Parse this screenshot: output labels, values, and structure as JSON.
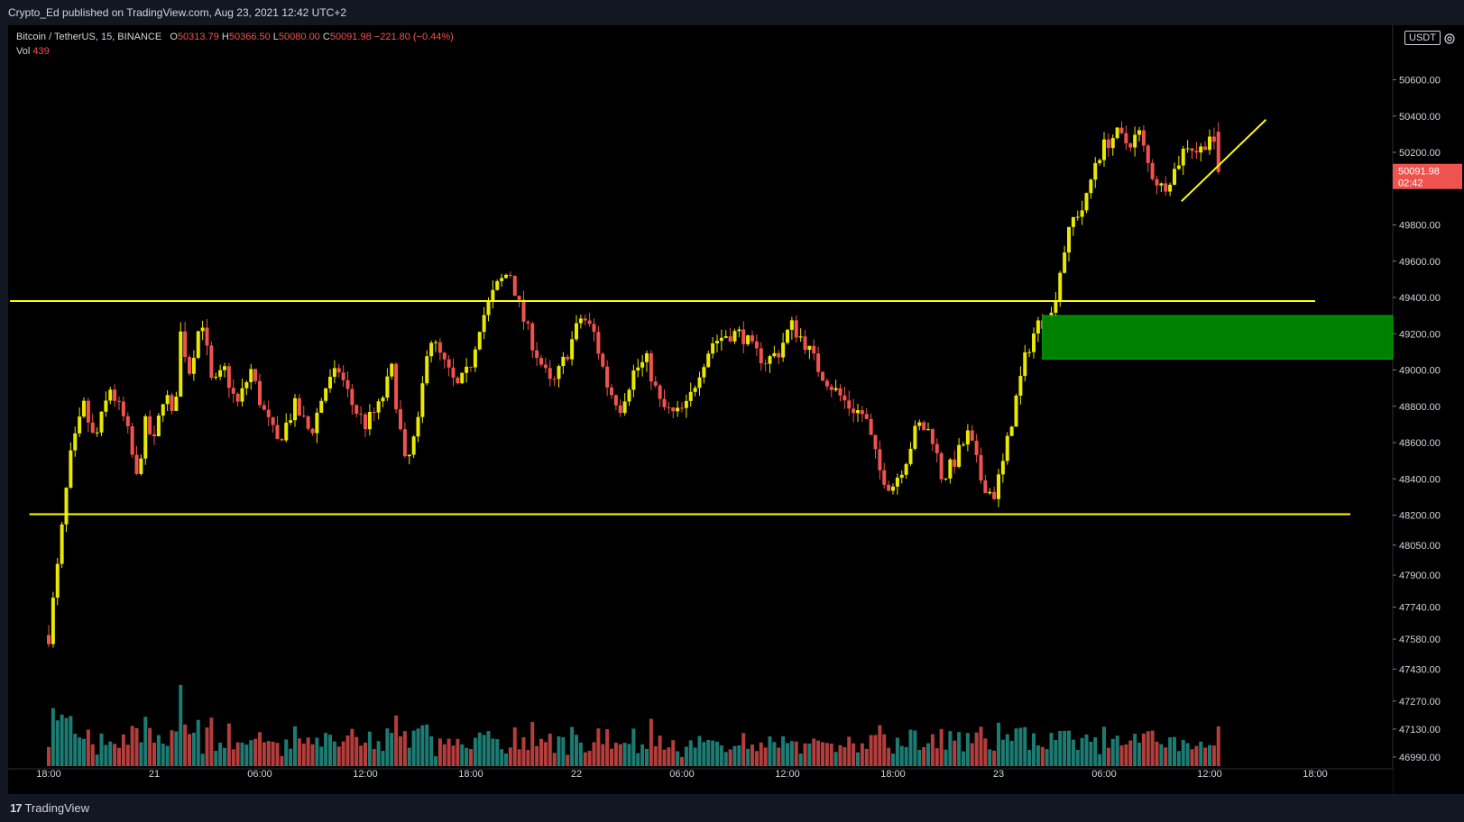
{
  "header": {
    "published": "Crypto_Ed published on TradingView.com, Aug 23, 2021 12:42 UTC+2"
  },
  "legend": {
    "symbol": "Bitcoin / TetherUS, 15, BINANCE",
    "open_label": "O",
    "open": "50313.79",
    "high_label": "H",
    "high": "50366.50",
    "low_label": "L",
    "low": "50080.00",
    "close_label": "C",
    "close": "50091.98",
    "change": "−221.80 (−0.44%)",
    "vol_label": "Vol",
    "vol": "439"
  },
  "price_axis": {
    "currency": "USDT",
    "last_price": "50091.98",
    "countdown": "02:42"
  },
  "footer": {
    "brand": "TradingView"
  },
  "colors": {
    "up": "#e8e800",
    "down": "#ef5350",
    "vol_up": "#26a69a",
    "vol_down": "#ef5350",
    "level_line": "#ffff00",
    "zone": "#008000"
  },
  "chart_data": {
    "type": "candlestick",
    "symbol": "Bitcoin / TetherUS",
    "interval": "15",
    "exchange": "BINANCE",
    "price_ticks": [
      {
        "label": "50600.00",
        "value": 50600
      },
      {
        "label": "50400.00",
        "value": 50400
      },
      {
        "label": "50200.00",
        "value": 50200
      },
      {
        "label": "49800.00",
        "value": 49800
      },
      {
        "label": "49600.00",
        "value": 49600
      },
      {
        "label": "49400.00",
        "value": 49400
      },
      {
        "label": "49200.00",
        "value": 49200
      },
      {
        "label": "49000.00",
        "value": 49000
      },
      {
        "label": "48800.00",
        "value": 48800
      },
      {
        "label": "48600.00",
        "value": 48600
      },
      {
        "label": "48400.00",
        "value": 48400
      },
      {
        "label": "48200.00",
        "value": 48200
      },
      {
        "label": "48050.00",
        "value": 48050
      },
      {
        "label": "47900.00",
        "value": 47900
      },
      {
        "label": "47740.00",
        "value": 47740
      },
      {
        "label": "47580.00",
        "value": 47580
      },
      {
        "label": "47430.00",
        "value": 47430
      },
      {
        "label": "47270.00",
        "value": 47270
      },
      {
        "label": "47130.00",
        "value": 47130
      },
      {
        "label": "46990.00",
        "value": 46990
      }
    ],
    "time_ticks": [
      "18:00",
      "21",
      "06:00",
      "12:00",
      "18:00",
      "22",
      "06:00",
      "12:00",
      "18:00",
      "23",
      "06:00",
      "12:00",
      "18:00"
    ],
    "time_tick_hours": [
      0,
      6,
      12,
      18,
      24,
      30,
      36,
      42,
      48,
      54,
      60,
      66,
      72
    ],
    "anchors": [
      [
        0,
        47600
      ],
      [
        0.6,
        48000
      ],
      [
        1.2,
        48500
      ],
      [
        2.0,
        48800
      ],
      [
        2.6,
        48600
      ],
      [
        3.5,
        48900
      ],
      [
        4.4,
        48700
      ],
      [
        5.0,
        48400
      ],
      [
        5.5,
        48700
      ],
      [
        6.0,
        48600
      ],
      [
        6.6,
        48900
      ],
      [
        7.1,
        48700
      ],
      [
        7.5,
        49200
      ],
      [
        8.0,
        49000
      ],
      [
        8.7,
        49300
      ],
      [
        9.3,
        48900
      ],
      [
        10.0,
        49000
      ],
      [
        10.7,
        48800
      ],
      [
        11.5,
        49000
      ],
      [
        12.1,
        48800
      ],
      [
        13.0,
        48600
      ],
      [
        14.0,
        48800
      ],
      [
        14.9,
        48650
      ],
      [
        15.7,
        48900
      ],
      [
        16.5,
        49000
      ],
      [
        17.3,
        48800
      ],
      [
        18.0,
        48700
      ],
      [
        18.8,
        48800
      ],
      [
        19.5,
        49000
      ],
      [
        20.3,
        48450
      ],
      [
        21.0,
        48700
      ],
      [
        21.6,
        49200
      ],
      [
        22.4,
        49050
      ],
      [
        23.2,
        48900
      ],
      [
        23.9,
        49000
      ],
      [
        24.5,
        49250
      ],
      [
        25.4,
        49450
      ],
      [
        26.2,
        49550
      ],
      [
        26.9,
        49300
      ],
      [
        27.7,
        49100
      ],
      [
        28.6,
        48900
      ],
      [
        29.5,
        49100
      ],
      [
        30.3,
        49300
      ],
      [
        31.0,
        49200
      ],
      [
        31.8,
        48900
      ],
      [
        32.5,
        48800
      ],
      [
        33.3,
        49000
      ],
      [
        34.0,
        49050
      ],
      [
        34.8,
        48800
      ],
      [
        35.6,
        48750
      ],
      [
        36.3,
        48800
      ],
      [
        37.0,
        49000
      ],
      [
        37.7,
        49150
      ],
      [
        38.6,
        49200
      ],
      [
        39.4,
        49200
      ],
      [
        40.1,
        49100
      ],
      [
        40.8,
        49050
      ],
      [
        41.5,
        49100
      ],
      [
        42.2,
        49250
      ],
      [
        43.0,
        49150
      ],
      [
        43.8,
        49000
      ],
      [
        44.6,
        48900
      ],
      [
        45.5,
        48800
      ],
      [
        46.4,
        48750
      ],
      [
        47.2,
        48450
      ],
      [
        47.9,
        48350
      ],
      [
        48.7,
        48500
      ],
      [
        49.4,
        48700
      ],
      [
        50.2,
        48650
      ],
      [
        50.8,
        48400
      ],
      [
        51.5,
        48500
      ],
      [
        52.3,
        48650
      ],
      [
        53.0,
        48400
      ],
      [
        53.7,
        48300
      ],
      [
        54.3,
        48500
      ],
      [
        54.9,
        48800
      ],
      [
        55.6,
        49100
      ],
      [
        56.2,
        49250
      ],
      [
        57.0,
        49300
      ],
      [
        57.7,
        49650
      ],
      [
        58.3,
        49850
      ],
      [
        58.9,
        49900
      ],
      [
        59.5,
        50150
      ],
      [
        60.1,
        50250
      ],
      [
        60.7,
        50300
      ],
      [
        61.3,
        50250
      ],
      [
        62.0,
        50300
      ],
      [
        62.6,
        50100
      ],
      [
        63.3,
        50000
      ],
      [
        64.0,
        50100
      ],
      [
        64.7,
        50250
      ],
      [
        65.4,
        50200
      ],
      [
        66.0,
        50300
      ],
      [
        66.6,
        50100
      ]
    ],
    "volume_range": [
      0,
      180
    ],
    "levels": [
      {
        "price": 49380,
        "from_hour": -2.2,
        "to_hour": 72
      },
      {
        "price": 48205,
        "from_hour": -1.1,
        "to_hour": 74
      }
    ],
    "zone": {
      "top": 49300,
      "bottom": 49060,
      "from_hour": 56.5
    },
    "trendline": {
      "from": [
        64.4,
        49930
      ],
      "to": [
        69.2,
        50380
      ]
    },
    "last_price": 50091.98
  }
}
